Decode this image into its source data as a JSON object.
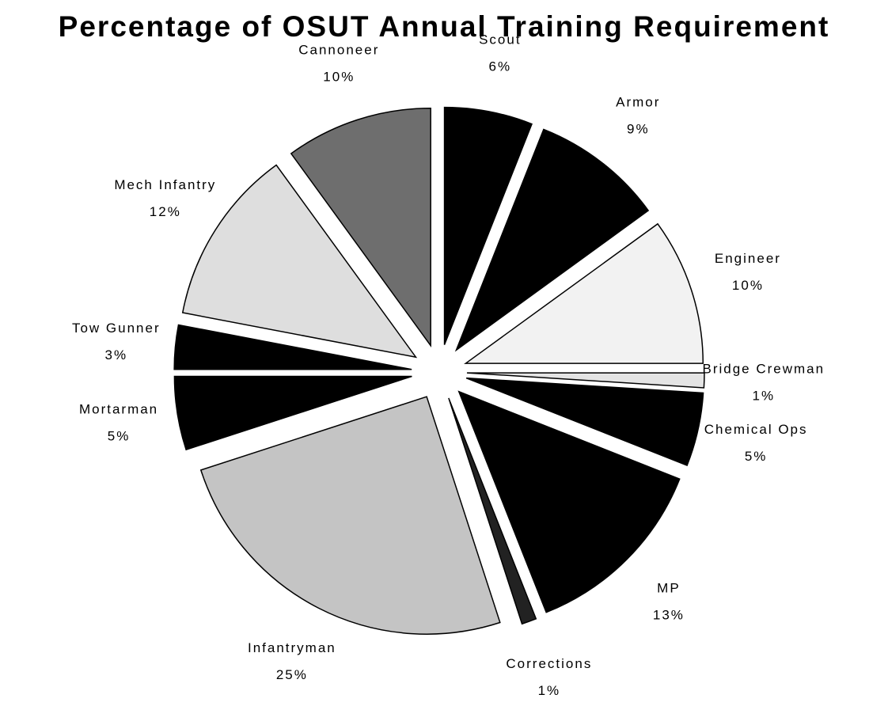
{
  "chart_data": {
    "type": "pie",
    "title": "Percentage of OSUT Annual Training  Requirement",
    "categories": [
      "Scout",
      "Armor",
      "Engineer",
      "Bridge Crewman",
      "Chemical Ops",
      "MP",
      "Corrections",
      "Infantryman",
      "Mortarman",
      "Tow Gunner",
      "Mech Infantry",
      "Cannoneer"
    ],
    "values": [
      6,
      9,
      10,
      1,
      5,
      13,
      1,
      25,
      5,
      3,
      12,
      10
    ],
    "value_labels": [
      "6%",
      "9%",
      "10%",
      "1%",
      "5%",
      "13%",
      "1%",
      "25%",
      "5%",
      "3%",
      "12%",
      "10%"
    ],
    "colors": [
      "#000000",
      "#000000",
      "#f2f2f2",
      "#e4e4e4",
      "#000000",
      "#000000",
      "#222222",
      "#c4c4c4",
      "#000000",
      "#000000",
      "#dedede",
      "#6e6e6e"
    ]
  }
}
